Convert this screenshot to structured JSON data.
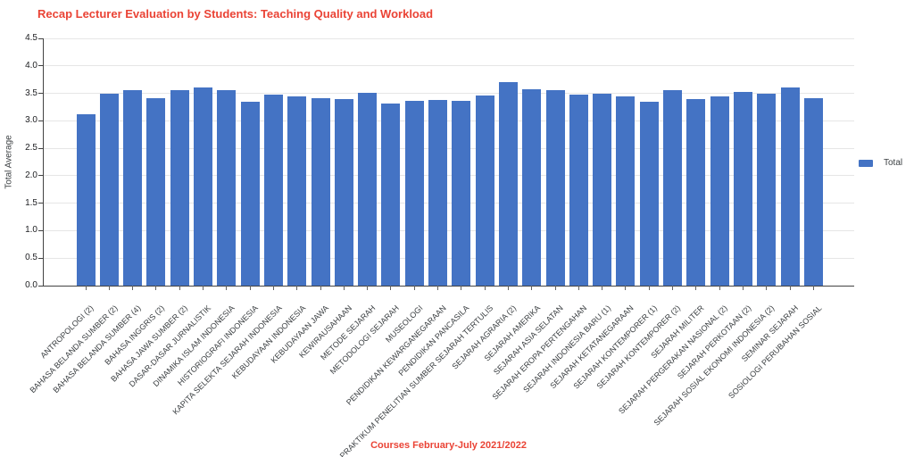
{
  "title": "Recap Lecturer Evaluation by Students: Teaching Quality and Workload",
  "legend": {
    "label": "Total"
  },
  "axes": {
    "y_label": "Total Average",
    "x_label": "Courses February-July 2021/2022",
    "y_ticks": [
      "0.0",
      "0.5",
      "1.0",
      "1.5",
      "2.0",
      "2.5",
      "3.0",
      "3.5",
      "4.0",
      "4.5"
    ]
  },
  "colors": {
    "bar": "#4473C4",
    "title": "#EA4335",
    "grid": "#E6E6E6",
    "axis": "#424242"
  },
  "chart_data": {
    "type": "bar",
    "title": "Recap Lecturer Evaluation by Students: Teaching Quality and Workload",
    "xlabel": "Courses February-July 2021/2022",
    "ylabel": "Total Average",
    "ylim": [
      0,
      4.5
    ],
    "ytick_step": 0.5,
    "grid": true,
    "legend_position": "right",
    "series_name": "Total",
    "categories": [
      "ANTROPOLOGI (2)",
      "BAHASA BELANDA SUMBER (2)",
      "BAHASA BELANDA SUMBER (4)",
      "BAHASA INGGRIS (2)",
      "BAHASA JAWA SUMBER (2)",
      "DASAR-DASAR JURNALISTIK",
      "DINAMIKA ISLAM INDONESIA",
      "HISTORIOGRAFI INDONESIA",
      "KAPITA SELEKTA SEJARAH INDONESIA",
      "KEBUDAYAAN INDONESIA",
      "KEBUDAYAAN JAWA",
      "KEWIRAUSAHAAN",
      "METODE SEJARAH",
      "METODOLOGI SEJARAH",
      "MUSEOLOGI",
      "PENDIDIKAN KEWARGANEGARAAN",
      "PENDIDIKAN PANCASILA",
      "PRAKTIKUM PENELITIAN SUMBER SEJARAH TERTULIS",
      "SEJARAH AGRARIA (2)",
      "SEJARAH AMERIKA",
      "SEJARAH ASIA SELATAN",
      "SEJARAH EROPA PERTENGAHAN",
      "SEJARAH INDONESIA BARU (1)",
      "SEJARAH KETATANEGARAAN",
      "SEJARAH KONTEMPORER (1)",
      "SEJARAH KONTEMPORER (2)",
      "SEJARAH MILITER",
      "SEJARAH PERGERAKAN NASIONAL (2)",
      "SEJARAH PERKOTAAN (2)",
      "SEJARAH SOSIAL EKONOMI INDONESIA (2)",
      "SEMINAR SEJARAH",
      "SOSIOLOGI PERUBAHAN SOSIAL"
    ],
    "values": [
      3.12,
      3.5,
      3.56,
      3.41,
      3.55,
      3.61,
      3.56,
      3.35,
      3.48,
      3.44,
      3.41,
      3.4,
      3.51,
      3.31,
      3.37,
      3.38,
      3.37,
      3.46,
      3.7,
      3.57,
      3.55,
      3.47,
      3.5,
      3.45,
      3.34,
      3.56,
      3.4,
      3.44,
      3.52,
      3.5,
      3.6,
      3.41
    ]
  }
}
